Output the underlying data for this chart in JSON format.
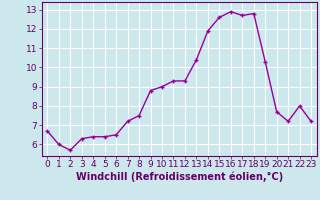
{
  "x": [
    0,
    1,
    2,
    3,
    4,
    5,
    6,
    7,
    8,
    9,
    10,
    11,
    12,
    13,
    14,
    15,
    16,
    17,
    18,
    19,
    20,
    21,
    22,
    23
  ],
  "y": [
    6.7,
    6.0,
    5.7,
    6.3,
    6.4,
    6.4,
    6.5,
    7.2,
    7.5,
    8.8,
    9.0,
    9.3,
    9.3,
    10.4,
    11.9,
    12.6,
    12.9,
    12.7,
    12.8,
    10.3,
    7.7,
    7.2,
    8.0,
    7.2
  ],
  "line_color": "#990099",
  "marker": "+",
  "marker_size": 3,
  "xlabel": "Windchill (Refroidissement éolien,°C)",
  "xlabel_fontsize": 7,
  "ylim": [
    5.4,
    13.4
  ],
  "xlim": [
    -0.5,
    23.5
  ],
  "yticks": [
    6,
    7,
    8,
    9,
    10,
    11,
    12,
    13
  ],
  "xticks": [
    0,
    1,
    2,
    3,
    4,
    5,
    6,
    7,
    8,
    9,
    10,
    11,
    12,
    13,
    14,
    15,
    16,
    17,
    18,
    19,
    20,
    21,
    22,
    23
  ],
  "bg_color": "#cce8ec",
  "grid_color": "#ffffff",
  "tick_label_fontsize": 6.5,
  "xlabel_color": "#660066",
  "tick_color": "#660066",
  "line_width": 1.0
}
